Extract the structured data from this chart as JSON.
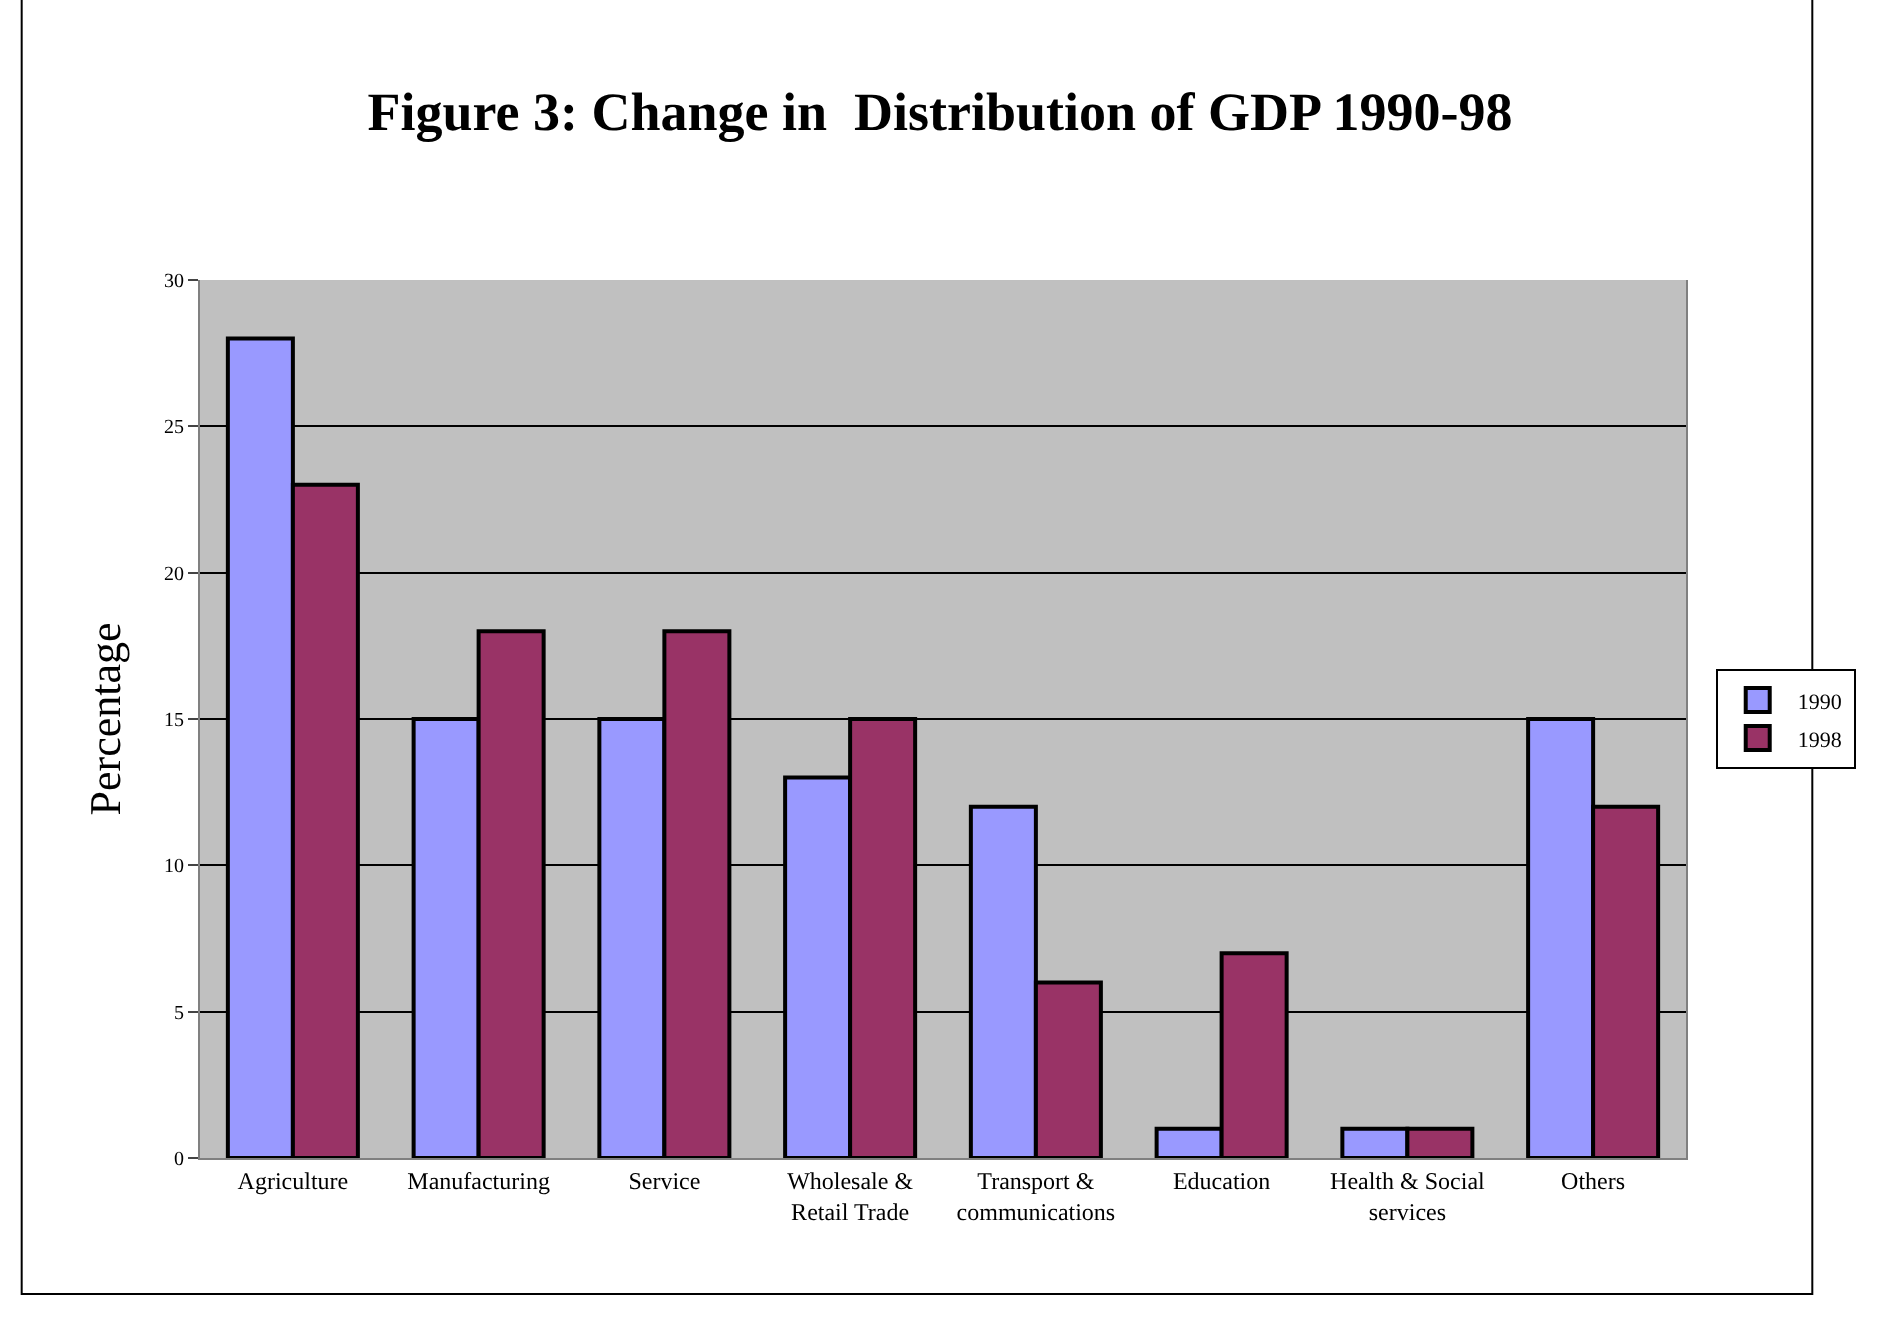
{
  "chart_data": {
    "type": "bar",
    "title": "Figure 3: Change in  Distribution of GDP 1990-98",
    "ylabel": "Percentage",
    "categories": [
      "Agriculture",
      "Manufacturing",
      "Service",
      "Wholesale & Retail Trade",
      "Transport & communications",
      "Education",
      "Health & Social services",
      "Others"
    ],
    "series": [
      {
        "name": "1990",
        "color": "#9999ff",
        "values": [
          28,
          15,
          15,
          13,
          12,
          1,
          1,
          15
        ]
      },
      {
        "name": "1998",
        "color": "#993366",
        "values": [
          23,
          18,
          18,
          15,
          6,
          7,
          1,
          12
        ]
      }
    ],
    "ylim": [
      0,
      30
    ],
    "yticks": [
      0,
      5,
      10,
      15,
      20,
      25,
      30
    ],
    "grid": "y",
    "legend": "right"
  }
}
